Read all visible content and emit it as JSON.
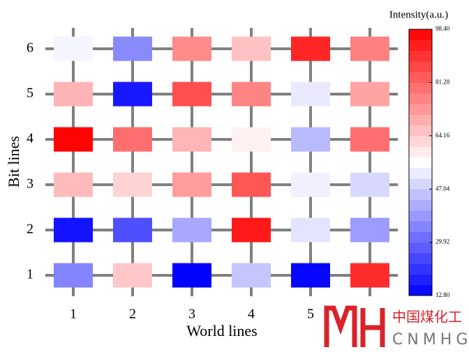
{
  "chart_data": {
    "type": "heatmap",
    "x_label": "World lines",
    "y_label": "Bit lines",
    "x_categories": [
      "1",
      "2",
      "3",
      "4",
      "5",
      "6"
    ],
    "y_categories": [
      "1",
      "2",
      "3",
      "4",
      "5",
      "6"
    ],
    "values": [
      [
        35,
        65,
        13,
        46,
        14,
        91
      ],
      [
        16,
        26,
        41,
        94,
        51,
        39
      ],
      [
        67,
        63,
        72,
        84,
        53,
        49
      ],
      [
        98,
        80,
        68,
        58,
        44,
        80
      ],
      [
        68,
        17,
        85,
        76,
        52,
        71
      ],
      [
        54,
        36,
        75,
        66,
        92,
        77
      ]
    ],
    "colorbar_title": "Intensity(a.u.)",
    "clim": [
      12.8,
      98.4
    ],
    "cticks": [
      {
        "value": 12.8,
        "label": "12.80"
      },
      {
        "value": 29.92,
        "label": "29.92"
      },
      {
        "value": 47.04,
        "label": "47.04"
      },
      {
        "value": 64.16,
        "label": "64.16"
      },
      {
        "value": 81.28,
        "label": "81.28"
      },
      {
        "value": 98.4,
        "label": "98.40"
      }
    ],
    "colormap": [
      "#0000ff",
      "#ffffff",
      "#ff0000"
    ]
  },
  "watermark": {
    "text": "中国煤化工",
    "subtext": "CNMHG"
  }
}
